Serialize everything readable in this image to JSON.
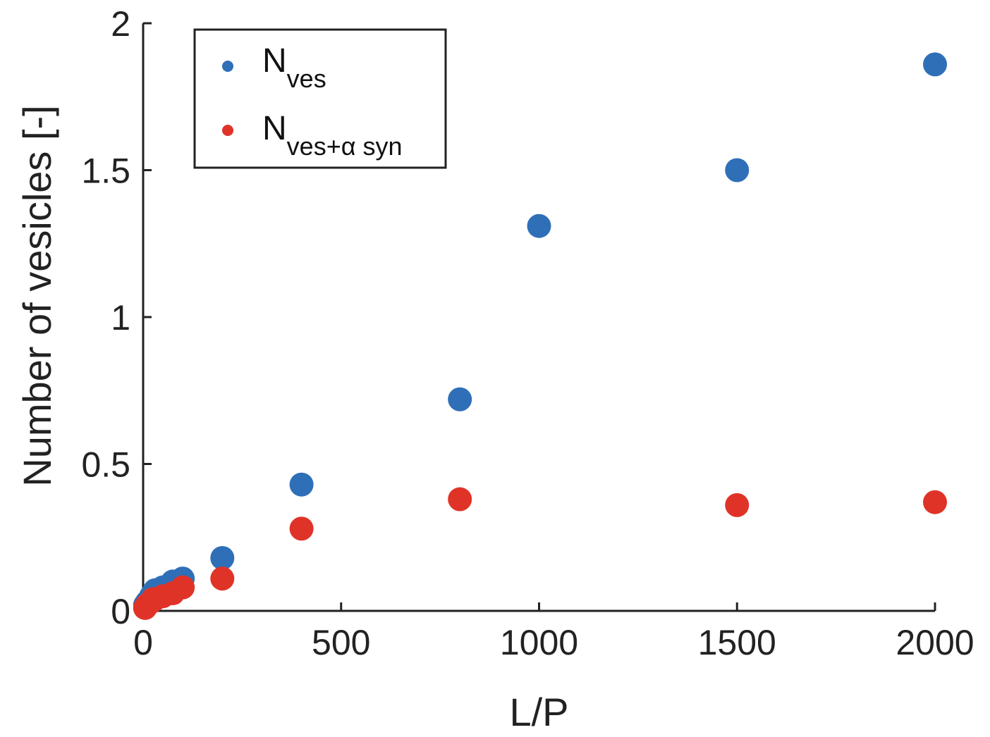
{
  "chart_data": {
    "type": "scatter",
    "xlabel": "L/P",
    "ylabel": "Number of vesicles [-]",
    "xlim": [
      0,
      2000
    ],
    "ylim": [
      0,
      2
    ],
    "x_ticks": [
      0,
      500,
      1000,
      1500,
      2000
    ],
    "y_ticks": [
      0,
      0.5,
      1,
      1.5,
      2
    ],
    "x_tick_labels": [
      "0",
      "500",
      "1000",
      "1500",
      "2000"
    ],
    "y_tick_labels": [
      "0",
      "0.5",
      "1",
      "1.5",
      "2"
    ],
    "grid": false,
    "legend_position": "top-left",
    "series": [
      {
        "name": "N_ves",
        "legend_main": "N",
        "legend_sub": "ves",
        "color": "#2f6fb8",
        "x": [
          5,
          10,
          20,
          25,
          30,
          50,
          75,
          100,
          200,
          400,
          800,
          1000,
          1500,
          2000
        ],
        "y": [
          0.02,
          0.03,
          0.05,
          0.06,
          0.07,
          0.08,
          0.1,
          0.11,
          0.18,
          0.43,
          0.72,
          1.31,
          1.5,
          1.86
        ]
      },
      {
        "name": "N_ves+α syn",
        "legend_main": "N",
        "legend_sub": "ves+α syn",
        "color": "#e03328",
        "x": [
          5,
          10,
          20,
          25,
          30,
          50,
          75,
          100,
          200,
          400,
          800,
          1500,
          2000
        ],
        "y": [
          0.01,
          0.02,
          0.03,
          0.04,
          0.04,
          0.05,
          0.06,
          0.08,
          0.11,
          0.28,
          0.38,
          0.36,
          0.37
        ]
      }
    ]
  }
}
